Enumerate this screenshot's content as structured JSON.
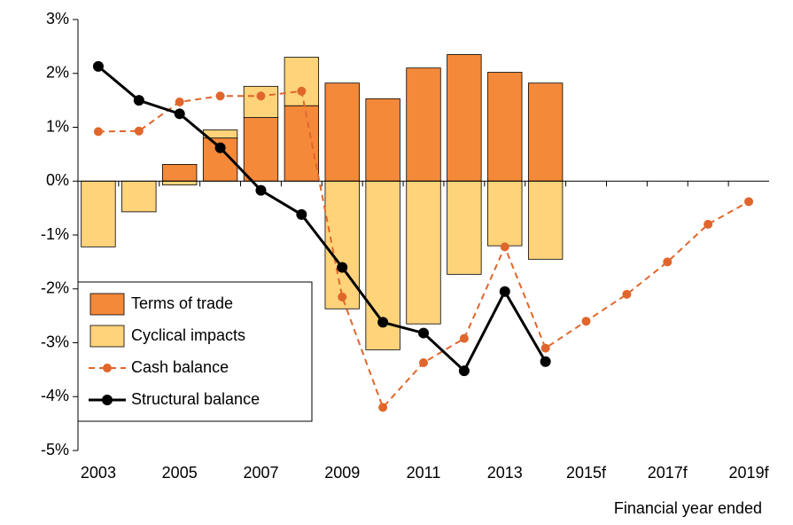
{
  "chart_data": {
    "type": "bar",
    "x_label": "Financial year ended",
    "categories": [
      "2003",
      null,
      "2005",
      null,
      "2007",
      null,
      "2009",
      null,
      "2011",
      null,
      "2013",
      null,
      "2015f",
      null,
      "2017f",
      null,
      "2019f"
    ],
    "series": [
      {
        "name": "Terms of trade",
        "type": "bar",
        "color": "#f4893a",
        "values": [
          0,
          0,
          0.31,
          0.8,
          1.18,
          1.4,
          1.82,
          1.53,
          2.1,
          2.35,
          2.02,
          1.82,
          null,
          null,
          null,
          null,
          null
        ]
      },
      {
        "name": "Cyclical impacts",
        "type": "bar",
        "color": "#ffd37a",
        "values": [
          -1.22,
          -0.57,
          -0.07,
          0.15,
          0.58,
          0.9,
          -2.37,
          -3.13,
          -2.65,
          -1.73,
          -1.2,
          -1.45,
          null,
          null,
          null,
          null,
          null
        ]
      },
      {
        "name": "Cash balance",
        "type": "line",
        "dashed": true,
        "color": "#e0662b",
        "values": [
          0.92,
          0.93,
          1.47,
          1.58,
          1.58,
          1.67,
          -2.15,
          -4.2,
          -3.37,
          -2.92,
          -1.22,
          -3.1,
          -2.6,
          -2.1,
          -1.5,
          -0.8,
          -0.38
        ]
      },
      {
        "name": "Structural balance",
        "type": "line",
        "dashed": false,
        "color": "#000000",
        "values": [
          2.13,
          1.5,
          1.25,
          0.62,
          -0.17,
          -0.62,
          -1.6,
          -2.62,
          -2.82,
          -3.52,
          -2.05,
          -3.35,
          null,
          null,
          null,
          null,
          null
        ]
      }
    ],
    "ylim": [
      -5,
      3
    ],
    "yticks": [
      {
        "value": -5,
        "label": "-5%"
      },
      {
        "value": -4,
        "label": "-4%"
      },
      {
        "value": -3,
        "label": "-3%"
      },
      {
        "value": -2,
        "label": "-2%"
      },
      {
        "value": -1,
        "label": "-1%"
      },
      {
        "value": 0,
        "label": "0%"
      },
      {
        "value": 1,
        "label": "1%"
      },
      {
        "value": 2,
        "label": "2%"
      },
      {
        "value": 3,
        "label": "3%"
      }
    ],
    "grid": false,
    "legend": "lower left"
  }
}
